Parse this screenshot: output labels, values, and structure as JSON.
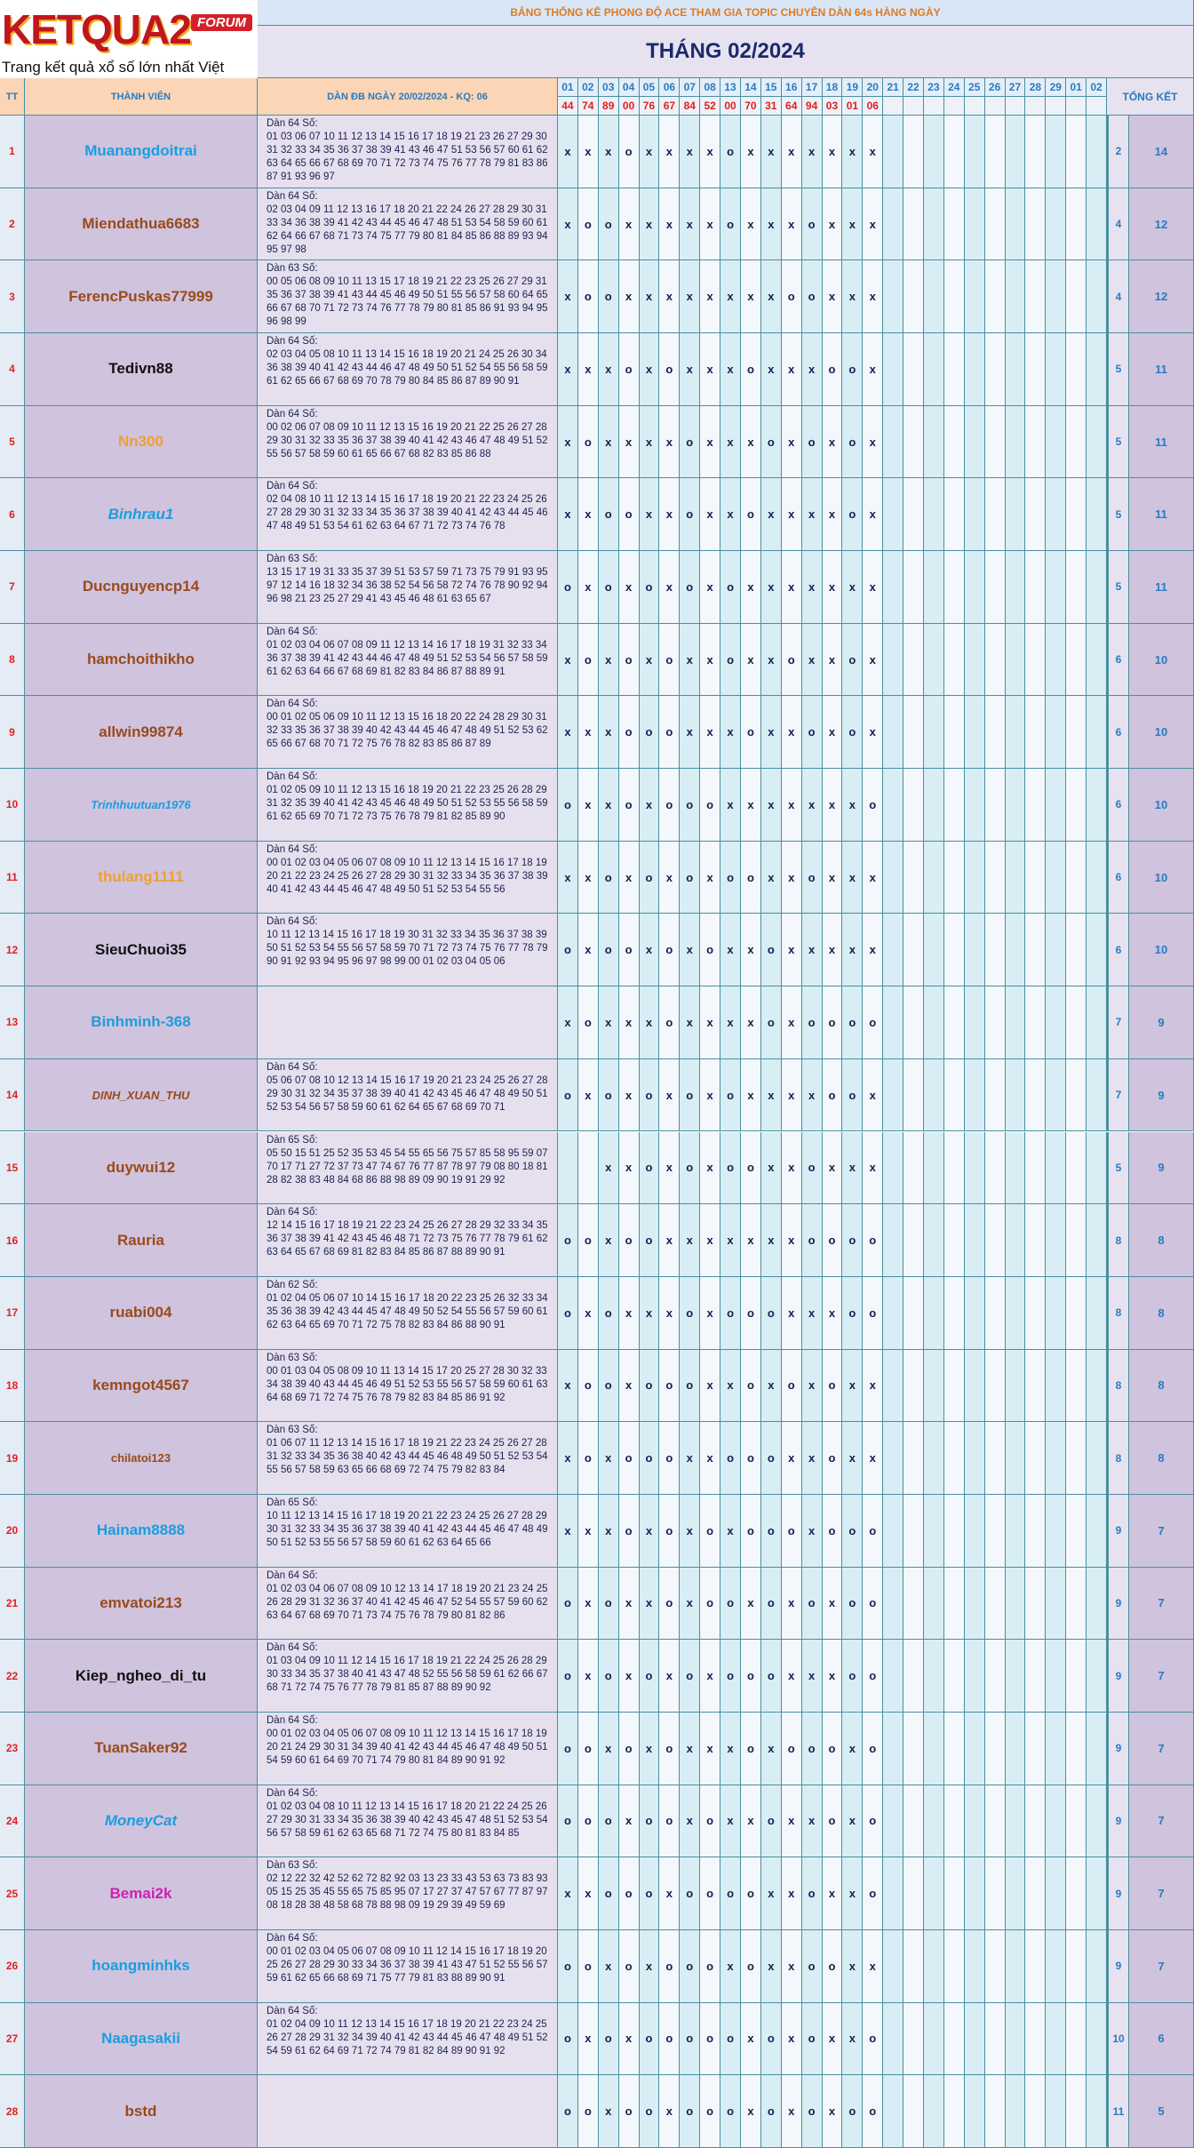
{
  "header": {
    "logo": "KETQUA2",
    "badge": "FORUM",
    "tagline": "Trang kết quả xổ số lớn nhất Việt Nam",
    "title": "BẢNG THỐNG KÊ PHONG ĐỘ ACE THAM GIA TOPIC CHUYÊN DÀN 64s HÀNG NGÀY",
    "month": "THÁNG 02/2024"
  },
  "table": {
    "columns": {
      "tt": "TT",
      "member": "THÀNH VIÊN",
      "dan": "DÀN ĐB NGÀY 20/02/2024 - KQ: 06",
      "summary": "TỔNG KẾT"
    },
    "days": [
      "01",
      "02",
      "03",
      "04",
      "05",
      "06",
      "07",
      "08",
      "13",
      "14",
      "15",
      "16",
      "17",
      "18",
      "19",
      "20",
      "21",
      "22",
      "23",
      "24",
      "25",
      "26",
      "27",
      "28",
      "29",
      "01",
      "02"
    ],
    "results": [
      "44",
      "74",
      "89",
      "00",
      "76",
      "67",
      "84",
      "52",
      "00",
      "70",
      "31",
      "64",
      "94",
      "03",
      "01",
      "06"
    ],
    "rows": [
      {
        "tt": 1,
        "name": "Muanangdoitrai",
        "color": "#1a9ee0",
        "dan_title": "Dàn 64 Số:",
        "dan": "01 03 06 07 10 11 12 13 14 15 16 17 18 19 21 23 26 27 29 30 31 32 33 34 35 36 37 38 39 41 43 46 47 51 53 56 57 60 61 62 63 64 65 66 67 68 69 70 71 72 73 74 75 76 77 78 79 81 83 86 87 91 93 96 97",
        "marks": [
          "x",
          "x",
          "x",
          "o",
          "x",
          "x",
          "x",
          "x",
          "o",
          "x",
          "x",
          "x",
          "x",
          "x",
          "x",
          "x"
        ],
        "wins": 2,
        "total": 14
      },
      {
        "tt": 2,
        "name": "Miendathua6683",
        "color": "#9a4a1a",
        "dan_title": "Dàn 64 Số:",
        "dan": "02 03 04 09 11 12 13 16 17 18 20 21 22 24 26 27 28 29 30 31 33 34 36 38 39 41 42 43 44 45 46 47 48 51 53 54 58 59 60 61 62 64 66 67 68 71 73 74 75 77 79 80 81 84 85 86 88 89 93 94 95 97 98",
        "marks": [
          "x",
          "o",
          "o",
          "x",
          "x",
          "x",
          "x",
          "x",
          "o",
          "x",
          "x",
          "x",
          "o",
          "x",
          "x",
          "x"
        ],
        "wins": 4,
        "total": 12
      },
      {
        "tt": 3,
        "name": "FerencPuskas77999",
        "color": "#9a4a1a",
        "dan_title": "Dàn 63 Số:",
        "dan": "00 05 06 08 09 10 11 13 15 17 18 19 21 22 23 25 26 27 29 31 35 36 37 38 39 41 43 44 45 46 49 50 51 55 56 57 58 60 64 65 66 67 68 70 71 72 73 74 76 77 78 79 80 81 85 86 91 93 94 95 96 98 99",
        "marks": [
          "x",
          "o",
          "o",
          "x",
          "x",
          "x",
          "x",
          "x",
          "x",
          "x",
          "x",
          "o",
          "o",
          "x",
          "x",
          "x"
        ],
        "wins": 4,
        "total": 12
      },
      {
        "tt": 4,
        "name": "Tedivn88",
        "color": "#111111",
        "dan_title": "Dàn 64 Số:",
        "dan": "02 03 04 05 08 10 11 13 14 15 16 18 19 20 21 24 25 26 30 34 36 38 39 40 41 42 43 44 46 47 48 49 50 51 52 54 55 56 58 59 61 62 65 66 67 68 69 70 78 79 80 84 85 86 87 89 90 91",
        "marks": [
          "x",
          "x",
          "x",
          "o",
          "x",
          "o",
          "x",
          "x",
          "x",
          "o",
          "x",
          "x",
          "x",
          "o",
          "o",
          "x"
        ],
        "wins": 5,
        "total": 11
      },
      {
        "tt": 5,
        "name": "Nn300",
        "color": "#f0a030",
        "dan_title": "Dàn 64 Số:",
        "dan": "00 02 06 07 08 09 10 11 12 13 15 16 19 20 21 22 25 26 27 28 29 30 31 32 33 35 36 37 38 39 40 41 42 43 46 47 48 49 51 52 55 56 57 58 59 60 61 65 66 67 68 82 83 85 86 88",
        "marks": [
          "x",
          "o",
          "x",
          "x",
          "x",
          "x",
          "o",
          "x",
          "x",
          "x",
          "o",
          "x",
          "o",
          "x",
          "o",
          "x"
        ],
        "wins": 5,
        "total": 11
      },
      {
        "tt": 6,
        "name": "Binhrau1",
        "color": "#1a9ee0",
        "italic": true,
        "dan_title": "Dàn 64 Số:",
        "dan": "02 04 08 10 11 12 13 14 15 16 17 18 19 20 21 22 23 24 25 26 27 28 29 30 31 32 33 34 35 36 37 38 39 40 41 42 43 44 45 46 47 48 49 51 53 54 61 62 63 64 67 71 72 73 74 76 78",
        "marks": [
          "x",
          "x",
          "o",
          "o",
          "x",
          "x",
          "o",
          "x",
          "x",
          "o",
          "x",
          "x",
          "x",
          "x",
          "o",
          "x"
        ],
        "wins": 5,
        "total": 11
      },
      {
        "tt": 7,
        "name": "Ducnguyencp14",
        "color": "#9a4a1a",
        "dan_title": "Dàn 63 Số:",
        "dan": "13 15 17 19 31 33 35 37 39 51 53 57 59 71 73 75 79 91 93 95 97 12 14 16 18 32 34 36 38 52 54 56 58 72 74 76 78 90 92 94 96 98 21 23 25 27 29 41 43 45 46 48 61 63 65 67",
        "marks": [
          "o",
          "x",
          "o",
          "x",
          "o",
          "x",
          "o",
          "x",
          "o",
          "x",
          "x",
          "x",
          "x",
          "x",
          "x",
          "x"
        ],
        "wins": 5,
        "total": 11
      },
      {
        "tt": 8,
        "name": "hamchoithikho",
        "color": "#9a4a1a",
        "dan_title": "Dàn 64 Số:",
        "dan": "01 02 03 04 06 07 08 09 11 12 13 14 16 17 18 19 31 32 33 34 36 37 38 39 41 42 43 44 46 47 48 49 51 52 53 54 56 57 58 59 61 62 63 64 66 67 68 69 81 82 83 84 86 87 88 89 91",
        "marks": [
          "x",
          "o",
          "x",
          "o",
          "x",
          "o",
          "x",
          "x",
          "o",
          "x",
          "x",
          "o",
          "x",
          "x",
          "o",
          "x"
        ],
        "wins": 6,
        "total": 10
      },
      {
        "tt": 9,
        "name": "allwin99874",
        "color": "#9a4a1a",
        "dan_title": "Dàn 64 Số:",
        "dan": "00 01 02 05 06 09 10 11 12 13 15 16 18 20 22 24 28 29 30 31 32 33 35 36 37 38 39 40 42 43 44 45 46 47 48 49 51 52 53 62 65 66 67 68 70 71 72 75 76 78 82 83 85 86 87 89",
        "marks": [
          "x",
          "x",
          "x",
          "o",
          "o",
          "o",
          "x",
          "x",
          "x",
          "o",
          "x",
          "x",
          "o",
          "x",
          "o",
          "x"
        ],
        "wins": 6,
        "total": 10
      },
      {
        "tt": 10,
        "name": "Trinhhuutuan1976",
        "color": "#1a9ee0",
        "italic": true,
        "dan_title": "Dàn 64 Số:",
        "dan": "01 02 05 09 10 11 12 13 15 16 18 19 20 21 22 23 25 26 28 29 31 32 35 39 40 41 42 43 45 46 48 49 50 51 52 53 55 56 58 59 61 62 65 69 70 71 72 73 75 76 78 79 81 82 85 89 90",
        "marks": [
          "o",
          "x",
          "x",
          "o",
          "x",
          "o",
          "o",
          "o",
          "x",
          "x",
          "x",
          "x",
          "x",
          "x",
          "x",
          "o"
        ],
        "wins": 6,
        "total": 10
      },
      {
        "tt": 11,
        "name": "thulang1111",
        "color": "#f0a030",
        "dan_title": "Dàn 64 Số:",
        "dan": "00 01 02 03 04 05 06 07 08 09 10 11 12 13 14 15 16 17 18 19 20 21 22 23 24 25 26 27 28 29 30 31 32 33 34 35 36 37 38 39 40 41 42 43 44 45 46 47 48 49 50 51 52 53 54 55 56",
        "marks": [
          "x",
          "x",
          "o",
          "x",
          "o",
          "x",
          "o",
          "x",
          "o",
          "o",
          "x",
          "x",
          "o",
          "x",
          "x",
          "x"
        ],
        "wins": 6,
        "total": 10
      },
      {
        "tt": 12,
        "name": "SieuChuoi35",
        "color": "#111111",
        "dan_title": "Dàn 64 Số:",
        "dan": "10 11 12 13 14 15 16 17 18 19 30 31 32 33 34 35 36 37 38 39 50 51 52 53 54 55 56 57 58 59 70 71 72 73 74 75 76 77 78 79 90 91 92 93 94 95 96 97 98 99 00 01 02 03 04 05 06",
        "marks": [
          "o",
          "x",
          "o",
          "o",
          "x",
          "o",
          "x",
          "o",
          "x",
          "x",
          "o",
          "x",
          "x",
          "x",
          "x",
          "x"
        ],
        "wins": 6,
        "total": 10
      },
      {
        "tt": 13,
        "name": "Binhminh-368",
        "color": "#1a9ee0",
        "marks": [
          "x",
          "o",
          "x",
          "x",
          "x",
          "o",
          "x",
          "x",
          "x",
          "x",
          "o",
          "x",
          "o",
          "o",
          "o",
          "o"
        ],
        "wins": 7,
        "total": 9
      },
      {
        "tt": 14,
        "name": "DINH_XUAN_THU",
        "color": "#9a4a1a",
        "italic": true,
        "dan_title": "Dàn 64 Số:",
        "dan": "05 06 07 08 10 12 13 14 15 16 17 19 20 21 23 24 25 26 27 28 29 30 31 32 34 35 37 38 39 40 41 42 43 45 46 47 48 49 50 51 52 53 54 56 57 58 59 60 61 62 64 65 67 68 69 70 71",
        "marks": [
          "o",
          "x",
          "o",
          "x",
          "o",
          "x",
          "o",
          "x",
          "o",
          "x",
          "x",
          "x",
          "x",
          "o",
          "o",
          "x"
        ],
        "wins": 7,
        "total": 9
      },
      {
        "tt": 15,
        "name": "duywui12",
        "color": "#9a4a1a",
        "dan_title": "Dàn 65 Số:",
        "dan": "05 50 15 51 25 52 35 53 45 54 55 65 56 75 57 85 58 95 59 07 70 17 71 27 72 37 73 47 74 67 76 77 87 78 97 79 08 80 18 81 28 82 38 83 48 84 68 86 88 98 89 09 90 19 91 29 92",
        "marks": [
          null,
          null,
          "x",
          "x",
          "o",
          "x",
          "o",
          "x",
          "o",
          "o",
          "x",
          "x",
          "o",
          "x",
          "x",
          "x"
        ],
        "wins": 5,
        "total": 9
      },
      {
        "tt": 16,
        "name": "Rauria",
        "color": "#9a4a1a",
        "dan_title": "Dàn 64 Số:",
        "dan": "12 14 15 16 17 18 19 21 22 23 24 25 26 27 28 29 32 33 34 35 36 37 38 39 41 42 43 45 46 48 71 72 73 75 76 77 78 79 61 62 63 64 65 67 68 69 81 82 83 84 85 86 87 88 89 90 91",
        "marks": [
          "o",
          "o",
          "x",
          "o",
          "o",
          "x",
          "x",
          "x",
          "x",
          "x",
          "x",
          "x",
          "o",
          "o",
          "o",
          "o"
        ],
        "wins": 8,
        "total": 8
      },
      {
        "tt": 17,
        "name": "ruabi004",
        "color": "#9a4a1a",
        "dan_title": "Dàn 62 Số:",
        "dan": "01 02 04 05 06 07 10 14 15 16 17 18 20 22 23 25 26 32 33 34 35 36 38 39 42 43 44 45 47 48 49 50 52 54 55 56 57 59 60 61 62 63 64 65 69 70 71 72 75 78 82 83 84 86 88 90 91",
        "marks": [
          "o",
          "x",
          "o",
          "x",
          "x",
          "x",
          "o",
          "x",
          "o",
          "o",
          "o",
          "x",
          "x",
          "x",
          "o",
          "o"
        ],
        "wins": 8,
        "total": 8
      },
      {
        "tt": 18,
        "name": "kemngot4567",
        "color": "#9a4a1a",
        "dan_title": "Dàn 63 Số:",
        "dan": "00 01 03 04 05 08 09 10 11 13 14 15 17 20 25 27 28 30 32 33 34 38 39 40 43 44 45 46 49 51 52 53 55 56 57 58 59 60 61 63 64 68 69 71 72 74 75 76 78 79 82 83 84 85 86 91 92",
        "marks": [
          "x",
          "o",
          "o",
          "x",
          "o",
          "o",
          "o",
          "x",
          "x",
          "o",
          "x",
          "o",
          "x",
          "o",
          "x",
          "x"
        ],
        "wins": 8,
        "total": 8
      },
      {
        "tt": 19,
        "name": "chilatoi123",
        "color": "#9a4a1a",
        "small": true,
        "dan_title": "Dàn 63 Số:",
        "dan": "01 06 07 11 12 13 14 15 16 17 18 19 21 22 23 24 25 26 27 28 31 32 33 34 35 36 38 40 42 43 44 45 46 48 49 50 51 52 53 54 55 56 57 58 59 63 65 66 68 69 72 74 75 79 82 83 84",
        "marks": [
          "x",
          "o",
          "x",
          "o",
          "o",
          "o",
          "x",
          "x",
          "o",
          "o",
          "o",
          "x",
          "x",
          "o",
          "x",
          "x"
        ],
        "wins": 8,
        "total": 8
      },
      {
        "tt": 20,
        "name": "Hainam8888",
        "color": "#1a9ee0",
        "dan_title": "Dàn 65 Số:",
        "dan": "10 11 12 13 14 15 16 17 18 19 20 21 22 23 24 25 26 27 28 29 30 31 32 33 34 35 36 37 38 39 40 41 42 43 44 45 46 47 48 49 50 51 52 53 55 56 57 58 59 60 61 62 63 64 65 66",
        "marks": [
          "x",
          "x",
          "x",
          "o",
          "x",
          "o",
          "x",
          "o",
          "x",
          "o",
          "o",
          "o",
          "x",
          "o",
          "o",
          "o"
        ],
        "wins": 9,
        "total": 7
      },
      {
        "tt": 21,
        "name": "emvatoi213",
        "color": "#9a4a1a",
        "dan_title": "Dàn 64 Số:",
        "dan": "01 02 03 04 06 07 08 09 10 12 13 14 17 18 19 20 21 23 24 25 26 28 29 31 32 36 37 40 41 42 45 46 47 52 54 55 57 59 60 62 63 64 67 68 69 70 71 73 74 75 76 78 79 80 81 82 86",
        "marks": [
          "o",
          "x",
          "o",
          "x",
          "x",
          "o",
          "x",
          "o",
          "o",
          "x",
          "o",
          "x",
          "o",
          "x",
          "o",
          "o"
        ],
        "wins": 9,
        "total": 7
      },
      {
        "tt": 22,
        "name": "Kiep_ngheo_di_tu",
        "color": "#111111",
        "dan_title": "Dàn 64 Số:",
        "dan": "01 03 04 09 10 11 12 14 15 16 17 18 19 21 22 24 25 26 28 29 30 33 34 35 37 38 40 41 43 47 48 52 55 56 58 59 61 62 66 67 68 71 72 74 75 76 77 78 79 81 85 87 88 89 90 92",
        "marks": [
          "o",
          "x",
          "o",
          "x",
          "o",
          "x",
          "o",
          "x",
          "o",
          "o",
          "o",
          "x",
          "x",
          "x",
          "o",
          "o"
        ],
        "wins": 9,
        "total": 7
      },
      {
        "tt": 23,
        "name": "TuanSaker92",
        "color": "#9a4a1a",
        "dan_title": "Dàn 64 Số:",
        "dan": "00 01 02 03 04 05 06 07 08 09 10 11 12 13 14 15 16 17 18 19 20 21 24 29 30 31 34 39 40 41 42 43 44 45 46 47 48 49 50 51 54 59 60 61 64 69 70 71 74 79 80 81 84 89 90 91 92",
        "marks": [
          "o",
          "o",
          "x",
          "o",
          "x",
          "o",
          "x",
          "x",
          "x",
          "o",
          "x",
          "o",
          "o",
          "o",
          "x",
          "o"
        ],
        "wins": 9,
        "total": 7
      },
      {
        "tt": 24,
        "name": "MoneyCat",
        "color": "#1a9ee0",
        "italic": true,
        "dan_title": "Dàn 64 Số:",
        "dan": "01 02 03 04 08 10 11 12 13 14 15 16 17 18 20 21 22 24 25 26 27 29 30 31 33 34 35 36 38 39 40 42 43 45 47 48 51 52 53 54 56 57 58 59 61 62 63 65 68 71 72 74 75 80 81 83 84 85",
        "marks": [
          "o",
          "o",
          "o",
          "x",
          "o",
          "o",
          "x",
          "o",
          "x",
          "x",
          "o",
          "x",
          "x",
          "o",
          "x",
          "o"
        ],
        "wins": 9,
        "total": 7
      },
      {
        "tt": 25,
        "name": "Bemai2k",
        "color": "#d020b0",
        "dan_title": "Dàn 63 Số:",
        "dan": "02 12 22 32 42 52 62 72 82 92 03 13 23 33 43 53 63 73 83 93 05 15 25 35 45 55 65 75 85 95 07 17 27 37 47 57 67 77 87 97 08 18 28 38 48 58 68 78 88 98 09 19 29 39 49 59 69",
        "marks": [
          "x",
          "x",
          "o",
          "o",
          "o",
          "x",
          "o",
          "o",
          "o",
          "o",
          "x",
          "x",
          "o",
          "x",
          "x",
          "o"
        ],
        "wins": 9,
        "total": 7
      },
      {
        "tt": 26,
        "name": "hoangminhks",
        "color": "#1a9ee0",
        "dan_title": "Dàn 64 Số:",
        "dan": "00 01 02 03 04 05 06 07 08 09 10 11 12 14 15 16 17 18 19 20 25 26 27 28 29 30 33 34 36 37 38 39 41 43 47 51 52 55 56 57 59 61 62 65 66 68 69 71 75 77 79 81 83 88 89 90 91",
        "marks": [
          "o",
          "o",
          "x",
          "o",
          "x",
          "o",
          "o",
          "o",
          "x",
          "o",
          "x",
          "x",
          "o",
          "o",
          "x",
          "x"
        ],
        "wins": 9,
        "total": 7
      },
      {
        "tt": 27,
        "name": "Naagasakii",
        "color": "#1a9ee0",
        "dan_title": "Dàn 64 Số:",
        "dan": "01 02 04 09 10 11 12 13 14 15 16 17 18 19 20 21 22 23 24 25 26 27 28 29 31 32 34 39 40 41 42 43 44 45 46 47 48 49 51 52 54 59 61 62 64 69 71 72 74 79 81 82 84 89 90 91 92",
        "marks": [
          "o",
          "x",
          "o",
          "x",
          "o",
          "o",
          "o",
          "o",
          "o",
          "x",
          "o",
          "x",
          "o",
          "x",
          "x",
          "o"
        ],
        "wins": 10,
        "total": 6
      },
      {
        "tt": 28,
        "name": "bstd",
        "color": "#9a4a1a",
        "marks": [
          "o",
          "o",
          "x",
          "o",
          "o",
          "x",
          "o",
          "o",
          "o",
          "x",
          "o",
          "x",
          "o",
          "x",
          "o",
          "o"
        ],
        "wins": 11,
        "total": 5
      }
    ]
  }
}
